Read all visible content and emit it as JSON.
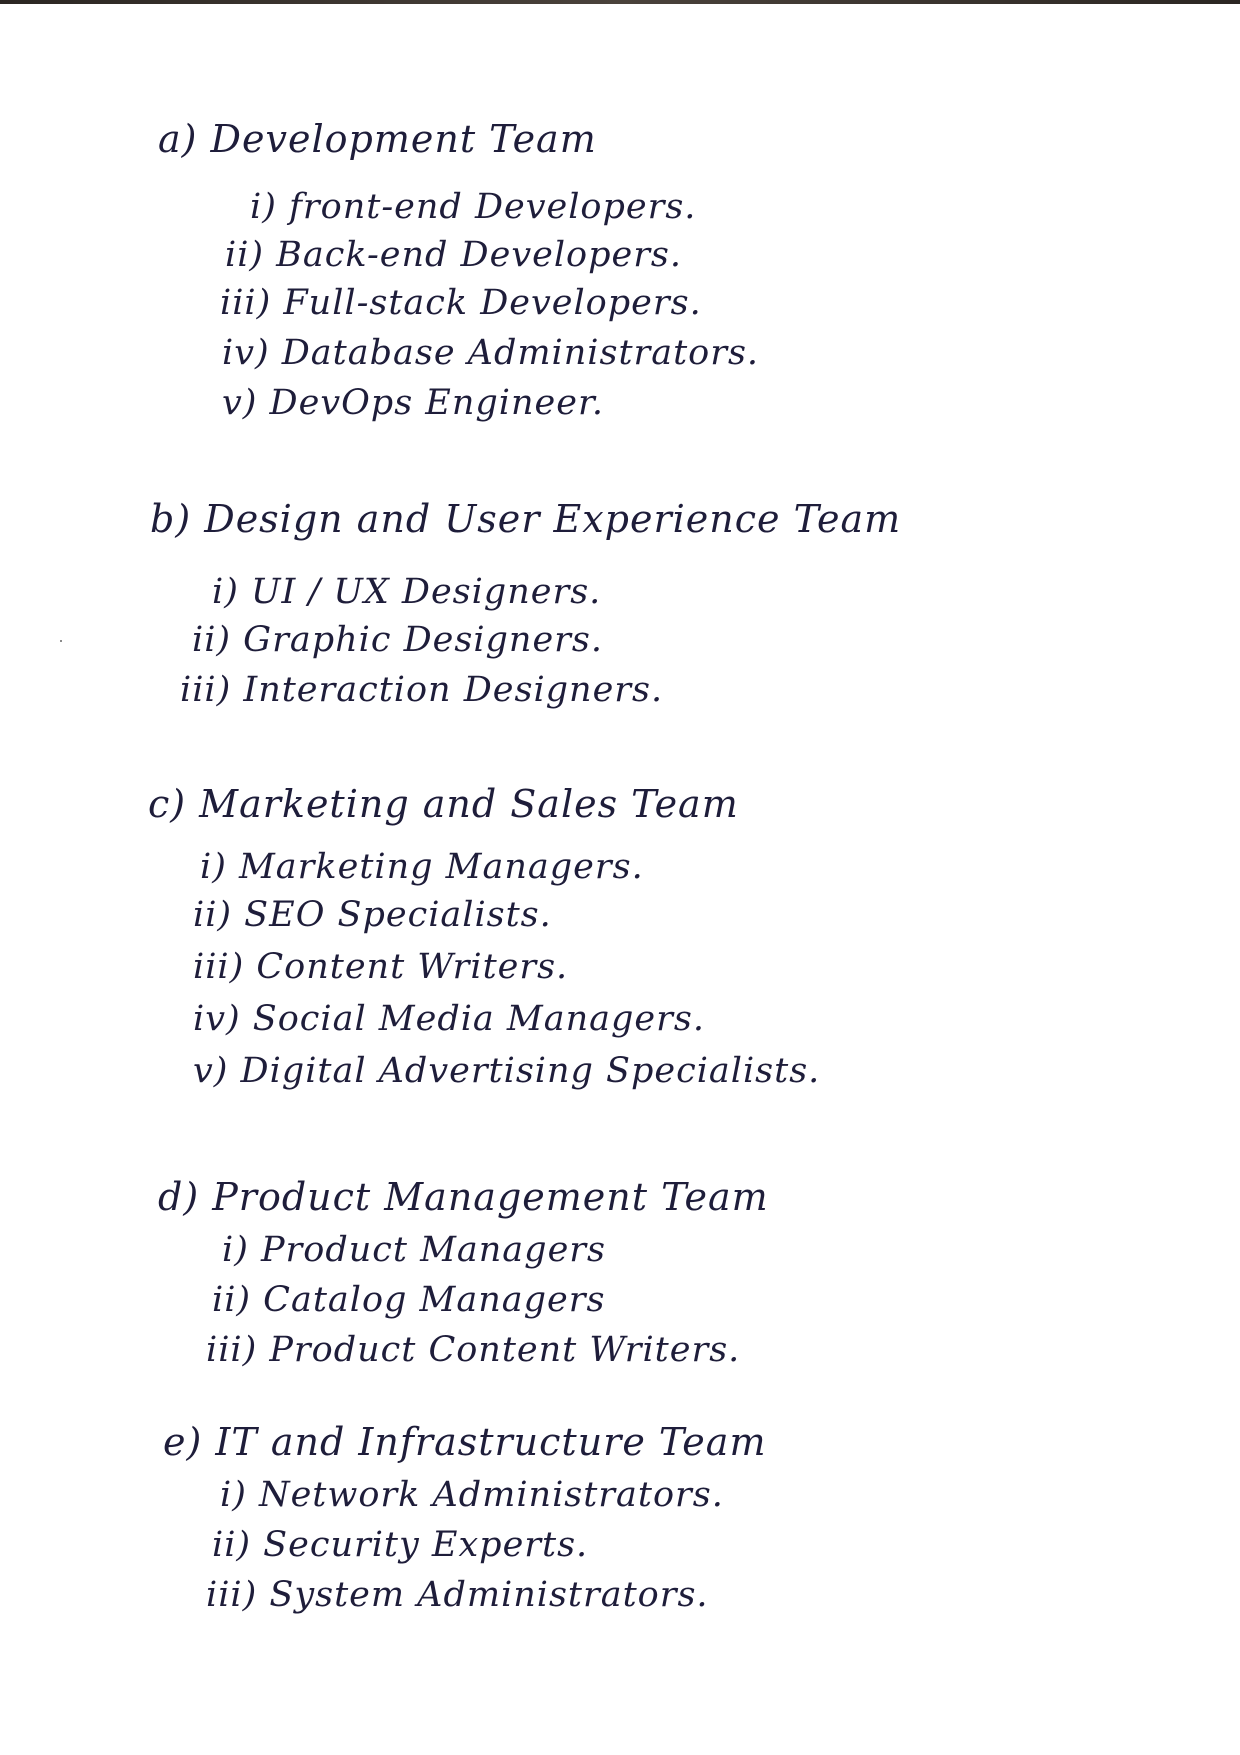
{
  "sections": [
    {
      "heading": "a) Development Team",
      "items": [
        "i) front-end Developers.",
        "ii) Back-end Developers.",
        "iii) Full-stack Developers.",
        "iv) Database Administrators.",
        "v) DevOps Engineer."
      ]
    },
    {
      "heading": "b) Design and User Experience Team",
      "items": [
        "i) UI / UX Designers.",
        "ii) Graphic Designers.",
        "iii) Interaction Designers."
      ]
    },
    {
      "heading": "c) Marketing and Sales Team",
      "items": [
        "i) Marketing Managers.",
        "ii) SEO Specialists.",
        "iii) Content Writers.",
        "iv) Social Media Managers.",
        "v) Digital Advertising Specialists."
      ]
    },
    {
      "heading": "d) Product Management Team",
      "items": [
        "i) Product Managers",
        "ii) Catalog Managers",
        "iii) Product Content Writers."
      ]
    },
    {
      "heading": "e) IT and Infrastructure Team",
      "items": [
        "i) Network Administrators.",
        "ii) Security Experts.",
        "iii) System Administrators."
      ]
    }
  ],
  "colors": {
    "ink": "#1e1d3a",
    "paper": "#ffffff"
  }
}
